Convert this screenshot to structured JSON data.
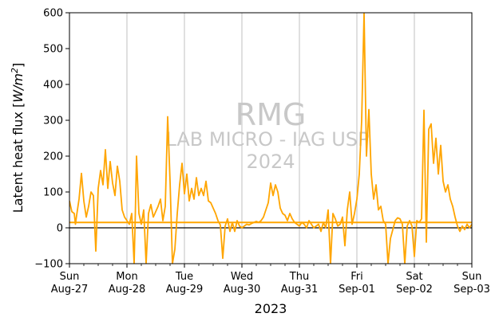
{
  "chart_data": {
    "type": "line",
    "xlabel": "2023",
    "ylabel": "Latent heat flux [W/m²]",
    "ylabel_parts": {
      "main": "Latent heat flux [",
      "unit": "W/m",
      "sup": "2",
      "close": "]"
    },
    "ylim": [
      -100,
      600
    ],
    "y_ticks": [
      -100,
      0,
      100,
      200,
      300,
      400,
      500,
      600
    ],
    "xlim": [
      "2023-08-27",
      "2023-09-03"
    ],
    "x_ticks": [
      {
        "date": "2023-08-27",
        "day": "Sun",
        "label": "Aug-27"
      },
      {
        "date": "2023-08-28",
        "day": "Mon",
        "label": "Aug-28"
      },
      {
        "date": "2023-08-29",
        "day": "Tue",
        "label": "Aug-29"
      },
      {
        "date": "2023-08-30",
        "day": "Wed",
        "label": "Aug-30"
      },
      {
        "date": "2023-08-31",
        "day": "Thu",
        "label": "Aug-31"
      },
      {
        "date": "2023-09-01",
        "day": "Fri",
        "label": "Sep-01"
      },
      {
        "date": "2023-09-02",
        "day": "Sat",
        "label": "Sep-02"
      },
      {
        "date": "2023-09-03",
        "day": "Sun",
        "label": "Sep-03"
      }
    ],
    "grid": "vertical",
    "zero_line": true,
    "mean_line": 15,
    "series": [
      {
        "color": "#FFA500",
        "points": [
          [
            "2023-08-27T00:00",
            75
          ],
          [
            "2023-08-27T01:00",
            45
          ],
          [
            "2023-08-27T02:00",
            40
          ],
          [
            "2023-08-27T02:30",
            10
          ],
          [
            "2023-08-27T03:00",
            35
          ],
          [
            "2023-08-27T04:00",
            80
          ],
          [
            "2023-08-27T05:00",
            152
          ],
          [
            "2023-08-27T06:00",
            75
          ],
          [
            "2023-08-27T07:00",
            30
          ],
          [
            "2023-08-27T08:00",
            60
          ],
          [
            "2023-08-27T09:00",
            100
          ],
          [
            "2023-08-27T10:00",
            90
          ],
          [
            "2023-08-27T11:00",
            -65
          ],
          [
            "2023-08-27T12:00",
            110
          ],
          [
            "2023-08-27T13:00",
            160
          ],
          [
            "2023-08-27T14:00",
            120
          ],
          [
            "2023-08-27T15:00",
            218
          ],
          [
            "2023-08-27T16:00",
            110
          ],
          [
            "2023-08-27T17:00",
            185
          ],
          [
            "2023-08-27T18:00",
            125
          ],
          [
            "2023-08-27T19:00",
            90
          ],
          [
            "2023-08-27T20:00",
            172
          ],
          [
            "2023-08-27T21:00",
            130
          ],
          [
            "2023-08-27T22:00",
            50
          ],
          [
            "2023-08-27T23:00",
            30
          ],
          [
            "2023-08-28T00:00",
            20
          ],
          [
            "2023-08-28T01:00",
            10
          ],
          [
            "2023-08-28T02:00",
            40
          ],
          [
            "2023-08-28T03:00",
            -100
          ],
          [
            "2023-08-28T03:30",
            40
          ],
          [
            "2023-08-28T04:00",
            200
          ],
          [
            "2023-08-28T05:00",
            40
          ],
          [
            "2023-08-28T06:00",
            10
          ],
          [
            "2023-08-28T07:00",
            50
          ],
          [
            "2023-08-28T08:00",
            -100
          ],
          [
            "2023-08-28T09:00",
            40
          ],
          [
            "2023-08-28T10:00",
            65
          ],
          [
            "2023-08-28T11:00",
            30
          ],
          [
            "2023-08-28T12:00",
            45
          ],
          [
            "2023-08-28T13:00",
            60
          ],
          [
            "2023-08-28T14:00",
            80
          ],
          [
            "2023-08-28T15:00",
            20
          ],
          [
            "2023-08-28T16:00",
            60
          ],
          [
            "2023-08-28T17:00",
            310
          ],
          [
            "2023-08-28T18:00",
            130
          ],
          [
            "2023-08-28T19:00",
            -100
          ],
          [
            "2023-08-28T20:00",
            -60
          ],
          [
            "2023-08-28T21:00",
            40
          ],
          [
            "2023-08-28T22:00",
            120
          ],
          [
            "2023-08-28T23:00",
            180
          ],
          [
            "2023-08-29T00:00",
            95
          ],
          [
            "2023-08-29T01:00",
            150
          ],
          [
            "2023-08-29T02:00",
            75
          ],
          [
            "2023-08-29T03:00",
            110
          ],
          [
            "2023-08-29T04:00",
            80
          ],
          [
            "2023-08-29T05:00",
            140
          ],
          [
            "2023-08-29T06:00",
            90
          ],
          [
            "2023-08-29T07:00",
            110
          ],
          [
            "2023-08-29T08:00",
            90
          ],
          [
            "2023-08-29T09:00",
            130
          ],
          [
            "2023-08-29T10:00",
            75
          ],
          [
            "2023-08-29T11:00",
            70
          ],
          [
            "2023-08-29T12:00",
            55
          ],
          [
            "2023-08-29T13:00",
            40
          ],
          [
            "2023-08-29T14:00",
            20
          ],
          [
            "2023-08-29T15:00",
            8
          ],
          [
            "2023-08-29T16:00",
            -85
          ],
          [
            "2023-08-29T17:00",
            5
          ],
          [
            "2023-08-29T18:00",
            25
          ],
          [
            "2023-08-29T19:00",
            -10
          ],
          [
            "2023-08-29T20:00",
            15
          ],
          [
            "2023-08-29T21:00",
            -10
          ],
          [
            "2023-08-29T22:00",
            20
          ],
          [
            "2023-08-29T23:00",
            5
          ],
          [
            "2023-08-30T00:00",
            0
          ],
          [
            "2023-08-30T01:00",
            5
          ],
          [
            "2023-08-30T02:00",
            10
          ],
          [
            "2023-08-30T03:00",
            8
          ],
          [
            "2023-08-30T04:00",
            12
          ],
          [
            "2023-08-30T05:00",
            15
          ],
          [
            "2023-08-30T06:00",
            18
          ],
          [
            "2023-08-30T07:00",
            15
          ],
          [
            "2023-08-30T08:00",
            20
          ],
          [
            "2023-08-30T09:00",
            30
          ],
          [
            "2023-08-30T10:00",
            50
          ],
          [
            "2023-08-30T11:00",
            70
          ],
          [
            "2023-08-30T12:00",
            125
          ],
          [
            "2023-08-30T13:00",
            90
          ],
          [
            "2023-08-30T14:00",
            120
          ],
          [
            "2023-08-30T15:00",
            100
          ],
          [
            "2023-08-30T16:00",
            55
          ],
          [
            "2023-08-30T17:00",
            40
          ],
          [
            "2023-08-30T18:00",
            35
          ],
          [
            "2023-08-30T19:00",
            20
          ],
          [
            "2023-08-30T20:00",
            40
          ],
          [
            "2023-08-30T21:00",
            25
          ],
          [
            "2023-08-30T22:00",
            15
          ],
          [
            "2023-08-30T23:00",
            10
          ],
          [
            "2023-08-31T00:00",
            5
          ],
          [
            "2023-08-31T01:00",
            15
          ],
          [
            "2023-08-31T02:00",
            10
          ],
          [
            "2023-08-31T03:00",
            0
          ],
          [
            "2023-08-31T04:00",
            20
          ],
          [
            "2023-08-31T05:00",
            10
          ],
          [
            "2023-08-31T06:00",
            0
          ],
          [
            "2023-08-31T07:00",
            5
          ],
          [
            "2023-08-31T08:00",
            10
          ],
          [
            "2023-08-31T09:00",
            -10
          ],
          [
            "2023-08-31T10:00",
            15
          ],
          [
            "2023-08-31T11:00",
            0
          ],
          [
            "2023-08-31T12:00",
            50
          ],
          [
            "2023-08-31T13:00",
            -100
          ],
          [
            "2023-08-31T14:00",
            40
          ],
          [
            "2023-08-31T15:00",
            25
          ],
          [
            "2023-08-31T16:00",
            5
          ],
          [
            "2023-08-31T17:00",
            10
          ],
          [
            "2023-08-31T18:00",
            30
          ],
          [
            "2023-08-31T19:00",
            -50
          ],
          [
            "2023-08-31T20:00",
            50
          ],
          [
            "2023-08-31T21:00",
            100
          ],
          [
            "2023-08-31T22:00",
            10
          ],
          [
            "2023-08-31T23:00",
            40
          ],
          [
            "2023-09-01T00:00",
            80
          ],
          [
            "2023-09-01T01:00",
            150
          ],
          [
            "2023-09-01T02:00",
            300
          ],
          [
            "2023-09-01T03:00",
            600
          ],
          [
            "2023-09-01T04:00",
            200
          ],
          [
            "2023-09-01T05:00",
            330
          ],
          [
            "2023-09-01T06:00",
            150
          ],
          [
            "2023-09-01T07:00",
            80
          ],
          [
            "2023-09-01T08:00",
            120
          ],
          [
            "2023-09-01T09:00",
            50
          ],
          [
            "2023-09-01T10:00",
            60
          ],
          [
            "2023-09-01T11:00",
            20
          ],
          [
            "2023-09-01T12:00",
            10
          ],
          [
            "2023-09-01T13:00",
            -100
          ],
          [
            "2023-09-01T14:00",
            -30
          ],
          [
            "2023-09-01T15:00",
            -5
          ],
          [
            "2023-09-01T16:00",
            20
          ],
          [
            "2023-09-01T17:00",
            28
          ],
          [
            "2023-09-01T18:00",
            25
          ],
          [
            "2023-09-01T19:00",
            10
          ],
          [
            "2023-09-01T20:00",
            -100
          ],
          [
            "2023-09-01T21:00",
            5
          ],
          [
            "2023-09-01T22:00",
            20
          ],
          [
            "2023-09-01T23:00",
            5
          ],
          [
            "2023-09-02T00:00",
            -80
          ],
          [
            "2023-09-02T01:00",
            20
          ],
          [
            "2023-09-02T02:00",
            15
          ],
          [
            "2023-09-02T03:00",
            25
          ],
          [
            "2023-09-02T04:00",
            328
          ],
          [
            "2023-09-02T05:00",
            -40
          ],
          [
            "2023-09-02T06:00",
            275
          ],
          [
            "2023-09-02T07:00",
            290
          ],
          [
            "2023-09-02T08:00",
            180
          ],
          [
            "2023-09-02T09:00",
            250
          ],
          [
            "2023-09-02T10:00",
            150
          ],
          [
            "2023-09-02T11:00",
            230
          ],
          [
            "2023-09-02T12:00",
            130
          ],
          [
            "2023-09-02T13:00",
            100
          ],
          [
            "2023-09-02T14:00",
            120
          ],
          [
            "2023-09-02T15:00",
            80
          ],
          [
            "2023-09-02T16:00",
            60
          ],
          [
            "2023-09-02T17:00",
            30
          ],
          [
            "2023-09-02T18:00",
            5
          ],
          [
            "2023-09-02T19:00",
            -10
          ],
          [
            "2023-09-02T20:00",
            5
          ],
          [
            "2023-09-02T21:00",
            -5
          ],
          [
            "2023-09-02T22:00",
            10
          ],
          [
            "2023-09-02T23:00",
            0
          ],
          [
            "2023-09-03T00:00",
            10
          ]
        ]
      }
    ]
  },
  "watermark": {
    "line1": "RMG",
    "line2": "LAB MICRO - IAG USP",
    "line3": "2024"
  }
}
